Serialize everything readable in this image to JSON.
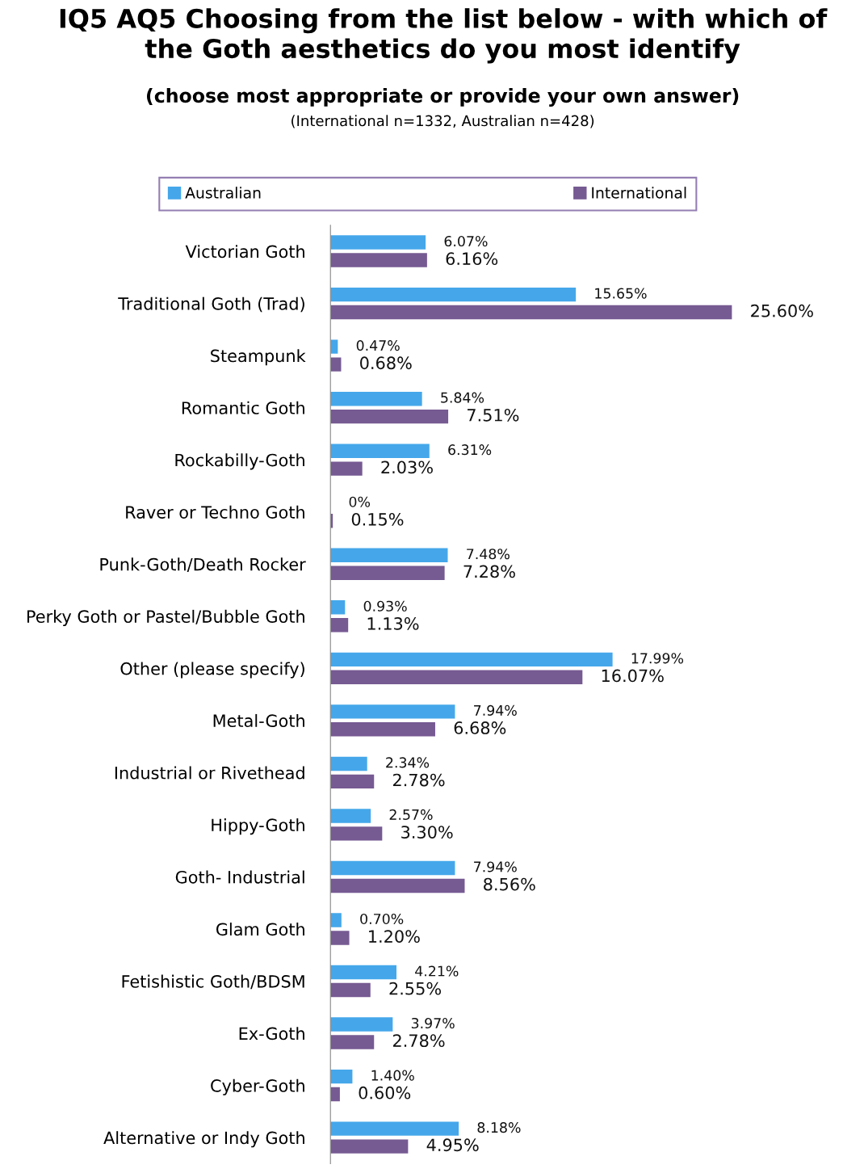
{
  "chart_data": {
    "type": "bar",
    "orientation": "horizontal",
    "title": "IQ5 AQ5 Choosing from the list below - with which of the Goth aesthetics do you most identify",
    "subtitle": "(choose most appropriate or provide your own answer)",
    "annotations": [
      "(International n=1332, Australian n=428)"
    ],
    "categories": [
      "Victorian Goth",
      "Traditional Goth (Trad)",
      "Steampunk",
      "Romantic Goth",
      "Rockabilly-Goth",
      "Raver or Techno Goth",
      "Punk-Goth/Death Rocker",
      "Perky Goth or Pastel/Bubble Goth",
      "Other (please specify)",
      "Metal-Goth",
      "Industrial or Rivethead",
      "Hippy-Goth",
      "Goth- Industrial",
      "Glam Goth",
      "Fetishistic Goth/BDSM",
      "Ex-Goth",
      "Cyber-Goth",
      "Alternative or Indy Goth"
    ],
    "series": [
      {
        "name": "Australian",
        "color": "#45a7ea",
        "values": [
          6.07,
          15.65,
          0.47,
          5.84,
          6.31,
          0,
          7.48,
          0.93,
          17.99,
          7.94,
          2.34,
          2.57,
          7.94,
          0.7,
          4.21,
          3.97,
          1.4,
          8.18
        ],
        "value_labels": [
          "6.07%",
          "15.65%",
          "0.47%",
          "5.84%",
          "6.31%",
          "0%",
          "7.48%",
          "0.93%",
          "17.99%",
          "7.94%",
          "2.34%",
          "2.57%",
          "7.94%",
          "0.70%",
          "4.21%",
          "3.97%",
          "1.40%",
          "8.18%"
        ]
      },
      {
        "name": "International",
        "color": "#765a92",
        "values": [
          6.16,
          25.6,
          0.68,
          7.51,
          2.03,
          0.15,
          7.28,
          1.13,
          16.07,
          6.68,
          2.78,
          3.3,
          8.56,
          1.2,
          2.55,
          2.78,
          0.6,
          4.95
        ],
        "value_labels": [
          "6.16%",
          "25.60%",
          "0.68%",
          "7.51%",
          "2.03%",
          "0.15%",
          "7.28%",
          "1.13%",
          "16.07%",
          "6.68%",
          "2.78%",
          "3.30%",
          "8.56%",
          "1.20%",
          "2.55%",
          "2.78%",
          "0.60%",
          "4.95%"
        ]
      }
    ],
    "legend": "top",
    "grid": false,
    "tick_labels": "y"
  }
}
